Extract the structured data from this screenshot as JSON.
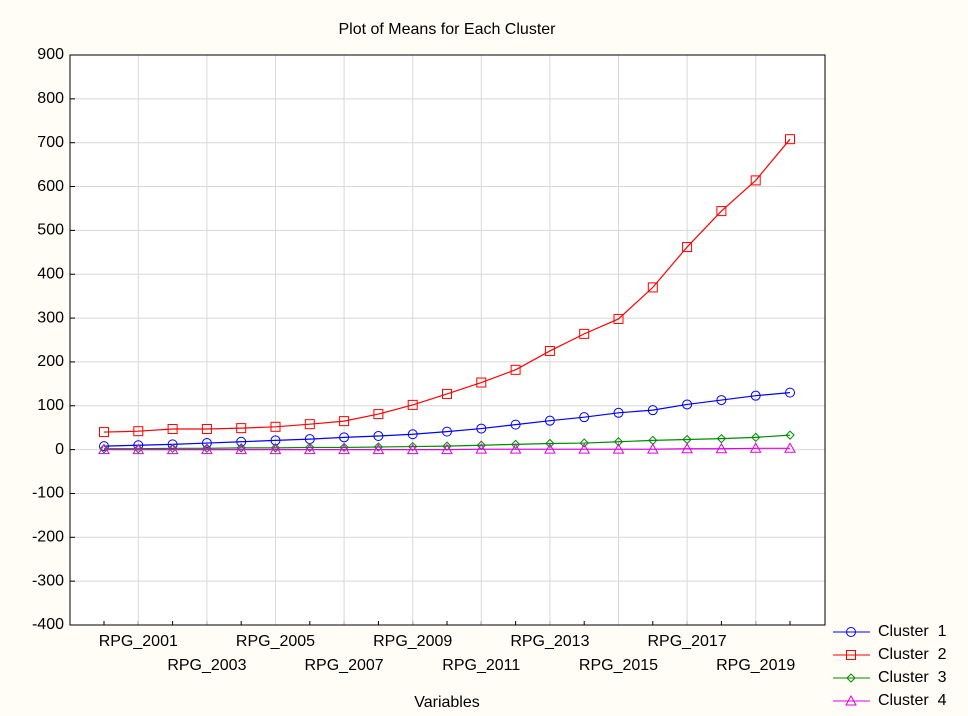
{
  "chart_data": {
    "type": "line",
    "title": "Plot of Means for Each Cluster",
    "x_label": "Variables",
    "categories": [
      null,
      "RPG_2001",
      null,
      "RPG_2003",
      null,
      "RPG_2005",
      null,
      "RPG_2007",
      null,
      "RPG_2009",
      null,
      "RPG_2011",
      null,
      "RPG_2013",
      null,
      "RPG_2015",
      null,
      "RPG_2017",
      null,
      "RPG_2019",
      null
    ],
    "series": [
      {
        "name": "Cluster  1",
        "color": "#0000ff",
        "marker": "circle",
        "values": [
          8,
          10,
          12,
          15,
          18,
          21,
          24,
          28,
          31,
          35,
          41,
          48,
          57,
          66,
          74,
          84,
          90,
          103,
          113,
          123,
          130
        ]
      },
      {
        "name": "Cluster  2",
        "color": "#ff0000",
        "marker": "square",
        "values": [
          40,
          42,
          47,
          47,
          49,
          52,
          58,
          65,
          81,
          102,
          127,
          153,
          182,
          225,
          264,
          298,
          370,
          462,
          544,
          614,
          708
        ]
      },
      {
        "name": "Cluster  3",
        "color": "#008c00",
        "marker": "diamond",
        "values": [
          2,
          2,
          3,
          3,
          4,
          4,
          5,
          5,
          6,
          7,
          8,
          10,
          12,
          14,
          15,
          18,
          21,
          23,
          25,
          28,
          33
        ]
      },
      {
        "name": "Cluster  4",
        "color": "#e000e0",
        "marker": "triangle",
        "values": [
          0,
          0,
          0,
          0,
          0,
          0,
          0,
          0,
          0,
          0,
          0,
          1,
          1,
          1,
          1,
          1,
          1,
          2,
          2,
          3,
          3
        ]
      }
    ],
    "ylim": [
      -400,
      900
    ],
    "yticks": [
      -400,
      -300,
      -200,
      -100,
      0,
      100,
      200,
      300,
      400,
      500,
      600,
      700,
      800,
      900
    ],
    "grid": true,
    "legend": "lower right"
  }
}
